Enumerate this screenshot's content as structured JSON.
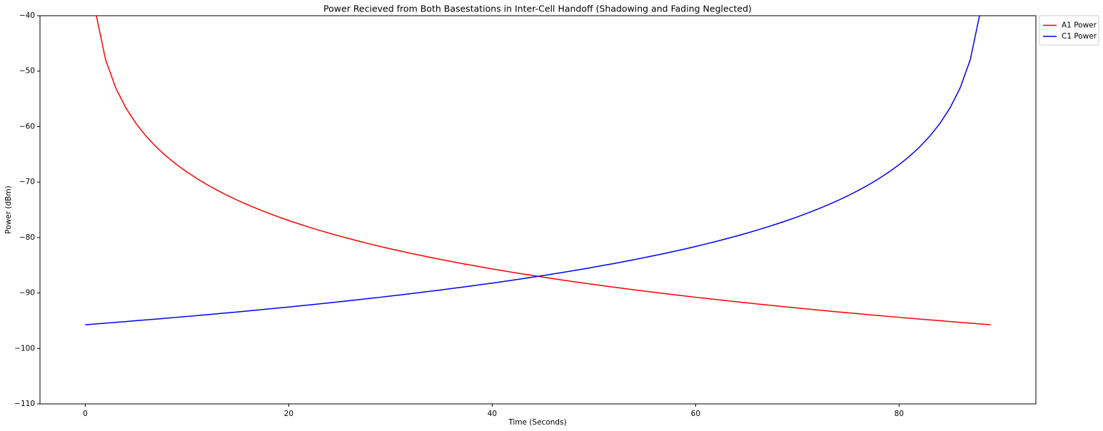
{
  "chart_data": {
    "type": "line",
    "title": "Power Recieved from Both Basestations in Inter-Cell Handoff (Shadowing and Fading Neglected)",
    "x_label": "Time (Seconds)",
    "y_label": "Power (dBm)",
    "x": [
      0,
      1,
      2,
      3,
      4,
      5,
      6,
      7,
      8,
      9,
      10,
      11,
      12,
      13,
      14,
      15,
      16,
      17,
      18,
      19,
      20,
      21,
      22,
      23,
      24,
      25,
      26,
      27,
      28,
      29,
      30,
      31,
      32,
      33,
      34,
      35,
      36,
      37,
      38,
      39,
      40,
      41,
      42,
      43,
      44,
      45,
      46,
      47,
      48,
      49,
      50,
      51,
      52,
      53,
      54,
      55,
      56,
      57,
      58,
      59,
      60,
      61,
      62,
      63,
      64,
      65,
      66,
      67,
      68,
      69,
      70,
      71,
      72,
      73,
      74,
      75,
      76,
      77,
      78,
      79,
      80,
      81,
      82,
      83,
      84,
      85,
      86,
      87,
      88,
      89
    ],
    "series": [
      {
        "name": "A1 Power",
        "color": "#ff0000",
        "values": [
          null,
          -39.2,
          -47.93,
          -53.04,
          -56.66,
          -59.47,
          -61.77,
          -63.71,
          -65.39,
          -66.87,
          -68.2,
          -69.4,
          -70.5,
          -71.5,
          -72.44,
          -73.31,
          -74.12,
          -74.88,
          -75.6,
          -76.28,
          -76.93,
          -77.54,
          -78.13,
          -78.69,
          -79.23,
          -79.74,
          -80.23,
          -80.71,
          -81.17,
          -81.61,
          -82.04,
          -82.45,
          -82.85,
          -83.24,
          -83.61,
          -83.98,
          -84.33,
          -84.68,
          -85.01,
          -85.34,
          -85.66,
          -85.97,
          -86.27,
          -86.57,
          -86.86,
          -87.14,
          -87.42,
          -87.69,
          -87.96,
          -88.22,
          -88.47,
          -88.72,
          -88.96,
          -89.2,
          -89.44,
          -89.67,
          -89.9,
          -90.12,
          -90.34,
          -90.55,
          -90.77,
          -90.97,
          -91.18,
          -91.38,
          -91.58,
          -91.77,
          -91.97,
          -92.16,
          -92.34,
          -92.53,
          -92.71,
          -92.89,
          -93.06,
          -93.24,
          -93.41,
          -93.58,
          -93.74,
          -93.91,
          -94.07,
          -94.23,
          -94.39,
          -94.55,
          -94.7,
          -94.85,
          -95,
          -95.15,
          -95.3,
          -95.45,
          -95.59,
          -95.73
        ]
      },
      {
        "name": "C1 Power",
        "color": "#0000ff",
        "values": [
          -95.73,
          -95.59,
          -95.45,
          -95.3,
          -95.15,
          -95,
          -94.85,
          -94.7,
          -94.55,
          -94.39,
          -94.23,
          -94.07,
          -93.91,
          -93.74,
          -93.58,
          -93.41,
          -93.24,
          -93.06,
          -92.89,
          -92.71,
          -92.53,
          -92.34,
          -92.16,
          -91.97,
          -91.77,
          -91.58,
          -91.38,
          -91.18,
          -90.97,
          -90.77,
          -90.55,
          -90.34,
          -90.12,
          -89.9,
          -89.67,
          -89.44,
          -89.2,
          -88.96,
          -88.72,
          -88.47,
          -88.22,
          -87.96,
          -87.69,
          -87.42,
          -87.14,
          -86.86,
          -86.57,
          -86.27,
          -85.97,
          -85.66,
          -85.34,
          -85.01,
          -84.68,
          -84.33,
          -83.98,
          -83.61,
          -83.24,
          -82.85,
          -82.45,
          -82.04,
          -81.61,
          -81.17,
          -80.71,
          -80.23,
          -79.74,
          -79.23,
          -78.69,
          -78.13,
          -77.54,
          -76.93,
          -76.28,
          -75.6,
          -74.88,
          -74.12,
          -73.31,
          -72.44,
          -71.5,
          -70.5,
          -69.4,
          -68.2,
          -66.87,
          -65.39,
          -63.71,
          -61.77,
          -59.47,
          -56.66,
          -53.04,
          -47.93,
          -39.2,
          null
        ]
      }
    ],
    "xlim": [
      -4.45,
      93.45
    ],
    "ylim": [
      -110,
      -40
    ],
    "xticks": [
      0,
      20,
      40,
      60,
      80
    ],
    "yticks": [
      {
        "value": -110,
        "label": "−110"
      },
      {
        "value": -100,
        "label": "−100"
      },
      {
        "value": -90,
        "label": "−90"
      },
      {
        "value": -80,
        "label": "−80"
      },
      {
        "value": -70,
        "label": "−70"
      },
      {
        "value": -60,
        "label": "−60"
      },
      {
        "value": -50,
        "label": "−50"
      },
      {
        "value": -40,
        "label": "−40"
      }
    ],
    "grid": false,
    "legend": "upper right outside"
  }
}
